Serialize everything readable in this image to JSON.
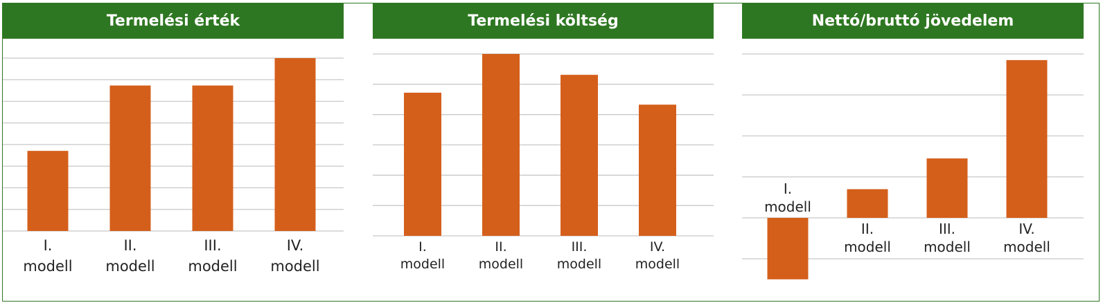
{
  "colors": {
    "header_bg": "#2e7722",
    "header_text": "#ffffff",
    "bar": "#d45f1b",
    "grid": "#c8c8c8"
  },
  "chart_data": [
    {
      "type": "bar",
      "title": "Termelési érték",
      "categories": [
        [
          "I.",
          "modell"
        ],
        [
          "II.",
          "modell"
        ],
        [
          "III.",
          "modell"
        ],
        [
          "IV.",
          "modell"
        ]
      ],
      "values": [
        3.8,
        6.9,
        6.9,
        8.2
      ],
      "ylim": [
        0,
        8.2
      ],
      "grid_count": 9,
      "grid": true
    },
    {
      "type": "bar",
      "title": "Termelési költség",
      "categories": [
        [
          "I.",
          "modell"
        ],
        [
          "II.",
          "modell"
        ],
        [
          "III.",
          "modell"
        ],
        [
          "IV.",
          "modell"
        ]
      ],
      "values": [
        4.8,
        6.1,
        5.4,
        4.4
      ],
      "ylim": [
        0,
        6.1
      ],
      "grid_count": 7,
      "grid": true
    },
    {
      "type": "bar",
      "title": "Nettó/bruttó jövedelem",
      "categories": [
        [
          "I.",
          "modell"
        ],
        [
          "II.",
          "modell"
        ],
        [
          "III.",
          "modell"
        ],
        [
          "IV.",
          "modell"
        ]
      ],
      "values": [
        -1.5,
        0.7,
        1.45,
        3.85
      ],
      "ylim": [
        -1,
        4
      ],
      "grid_count": 6,
      "grid": true
    }
  ]
}
